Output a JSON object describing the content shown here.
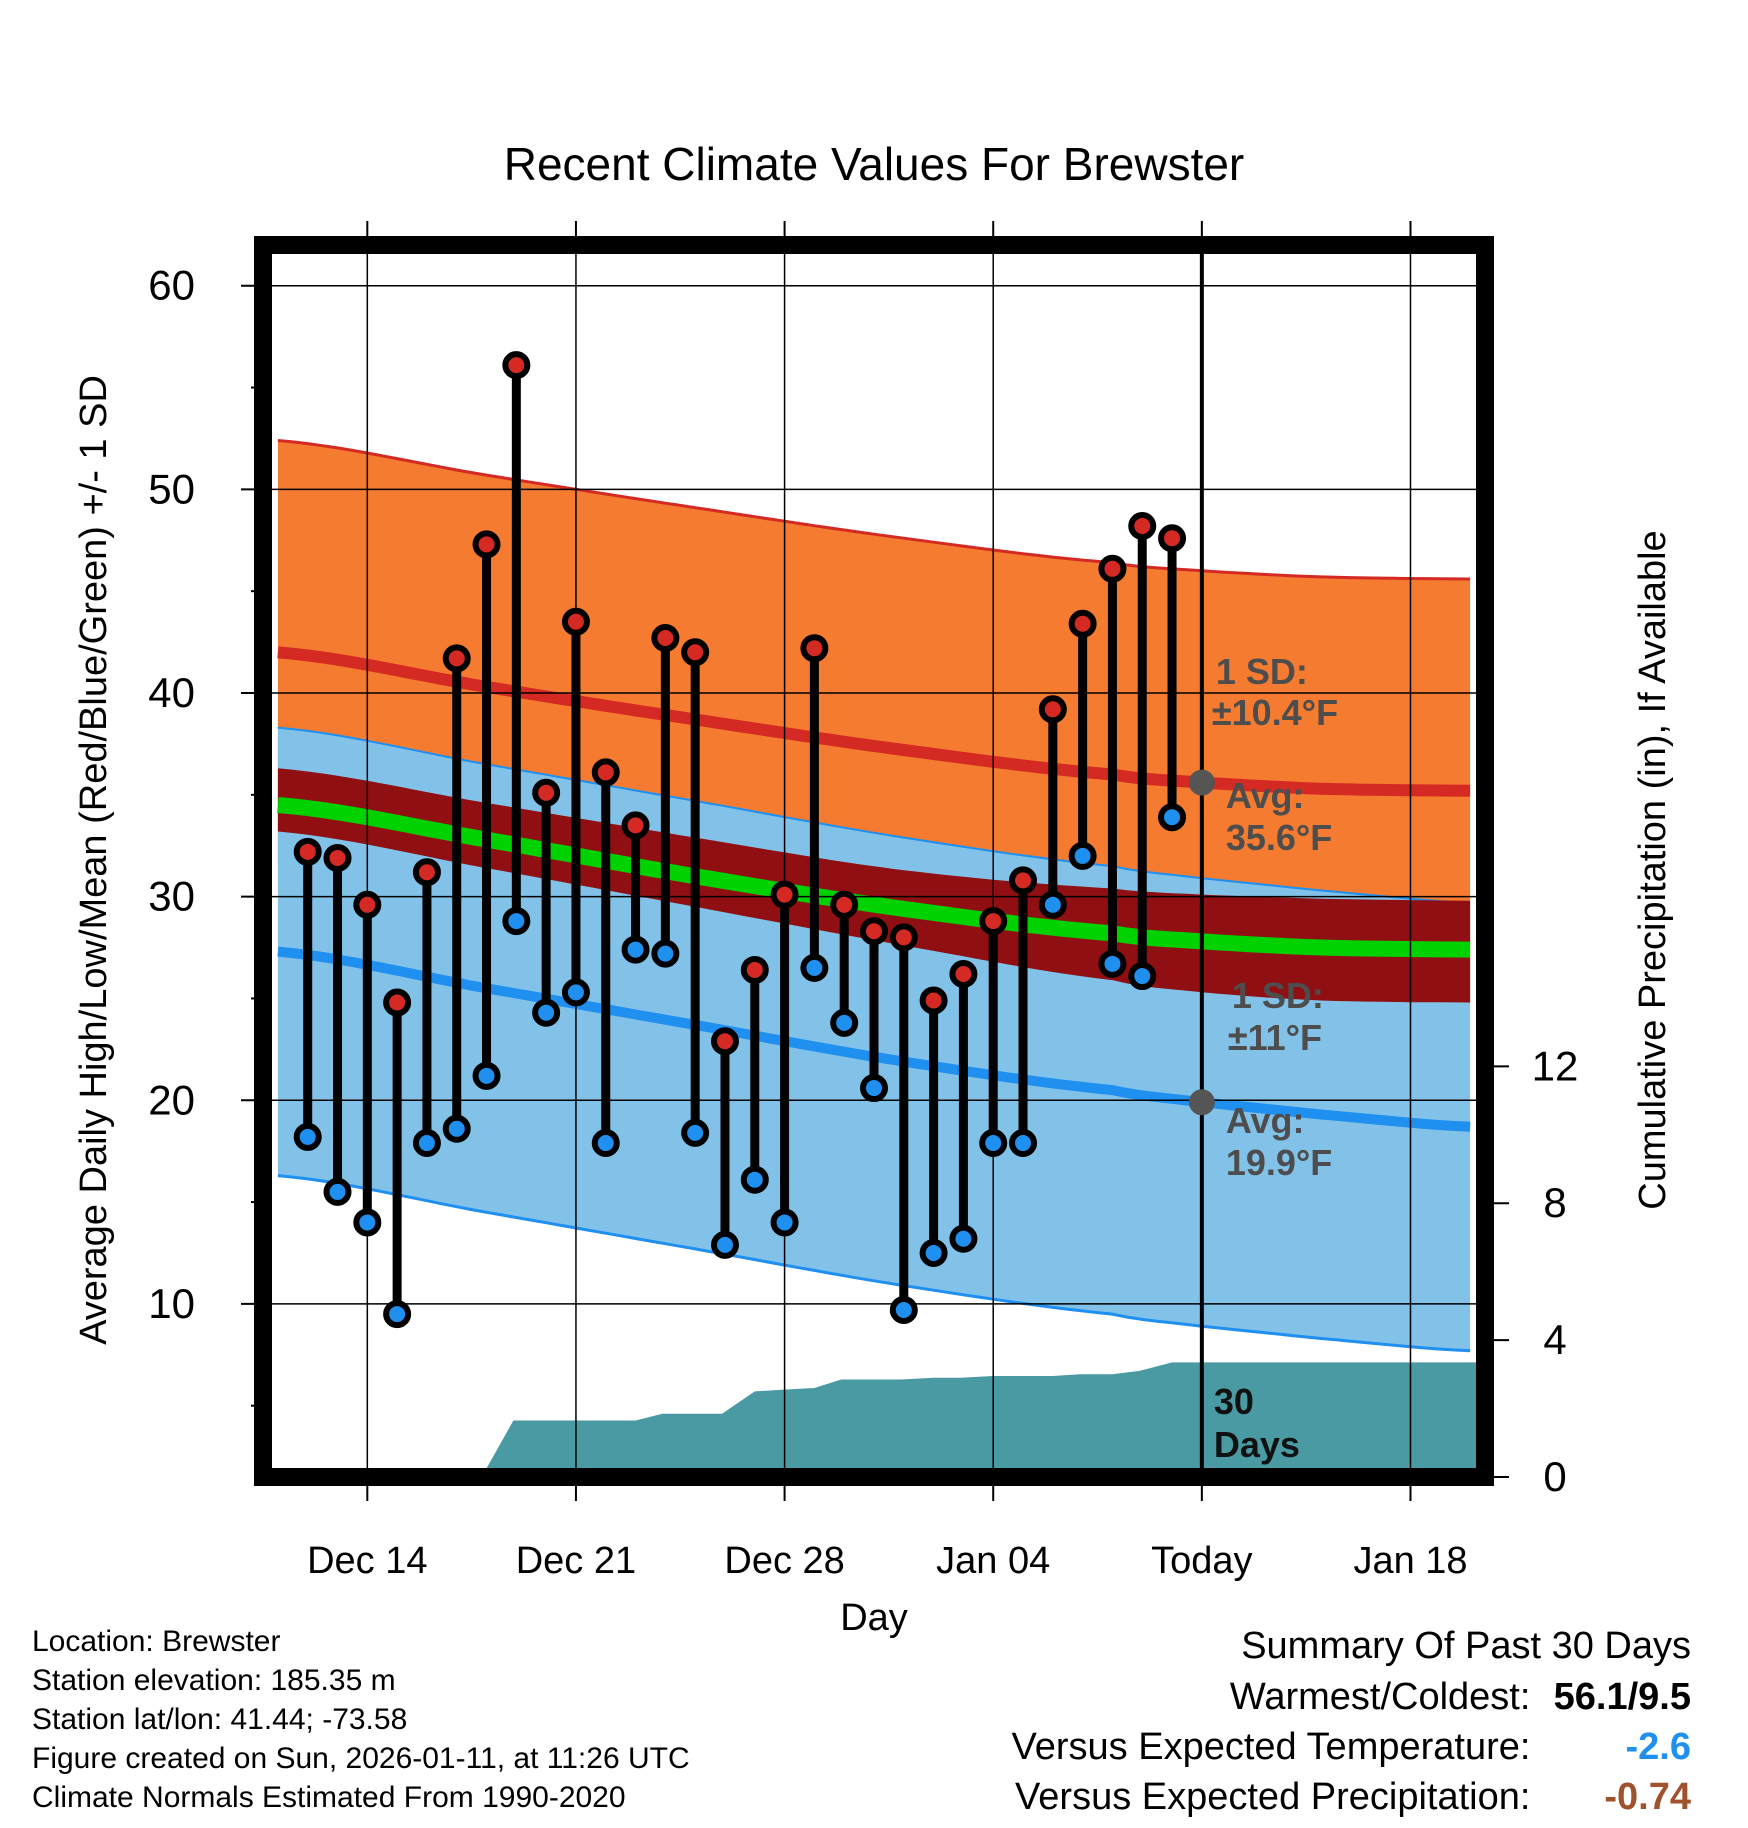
{
  "chart_data": {
    "type": "line",
    "title": "Recent Climate Values For Brewster",
    "xlabel": "Day",
    "ylabel": "Average Daily High/Low/Mean (Red/Blue/Green) +/- 1 SD",
    "ylabel_right": "Cumulative Precipitation (in), If Available",
    "ylim": [
      1.5,
      62
    ],
    "ylim_right": [
      0,
      36
    ],
    "x_range_days": [
      -31.5,
      9.5
    ],
    "x_ticks": [
      {
        "day": -28,
        "label": "Dec 14"
      },
      {
        "day": -21,
        "label": "Dec 21"
      },
      {
        "day": -14,
        "label": "Dec 28"
      },
      {
        "day": -7,
        "label": "Jan 04"
      },
      {
        "day": 0,
        "label": "Today"
      },
      {
        "day": 7,
        "label": "Jan 18"
      }
    ],
    "y_ticks": [
      10,
      20,
      30,
      40,
      50,
      60
    ],
    "y_ticks_right": [
      0,
      4,
      8,
      12
    ],
    "colors": {
      "high_band": "#f47b2f",
      "high_line": "#d42a23",
      "mean_band": "#8f0f12",
      "mean_line": "#00d100",
      "low_band": "#82c2e8",
      "low_line": "#1f8ff0",
      "precip": "#4a9aa3",
      "dot_high": "#d42a23",
      "dot_low": "#1f8ff0",
      "annot": "#4d4d4d"
    },
    "normals": {
      "days": [
        -31,
        -24,
        -17,
        -10,
        -3,
        0,
        4,
        9
      ],
      "high_avg": [
        42,
        40.3,
        38.7,
        37.2,
        36.0,
        35.6,
        35.3,
        35.2
      ],
      "high_sd": 10.4,
      "mean_avg": [
        34.5,
        32.8,
        31.0,
        29.4,
        28.2,
        27.8,
        27.5,
        27.4
      ],
      "mean_upper": [
        36.3,
        34.6,
        32.9,
        31.3,
        30.4,
        30.1,
        29.9,
        29.8
      ],
      "mean_lower": [
        33.2,
        31.4,
        29.5,
        27.6,
        25.9,
        25.3,
        24.9,
        24.8
      ],
      "low_avg": [
        27.3,
        25.5,
        23.7,
        21.9,
        20.5,
        19.9,
        19.3,
        18.7
      ],
      "low_sd": 11
    },
    "series": [
      {
        "name": "High",
        "color": "#d42a23",
        "values": [
          32.2,
          31.9,
          29.6,
          24.8,
          31.2,
          41.7,
          47.3,
          56.1,
          35.1,
          43.5,
          36.1,
          33.5,
          42.7,
          42.0,
          22.9,
          26.4,
          30.1,
          42.2,
          29.6,
          28.3,
          28.0,
          24.9,
          26.2,
          28.8,
          30.8,
          39.2,
          43.4,
          46.1,
          48.2,
          47.6
        ]
      },
      {
        "name": "Low",
        "color": "#1f8ff0",
        "values": [
          18.2,
          15.5,
          14.0,
          9.5,
          17.9,
          18.6,
          21.2,
          28.8,
          24.3,
          25.3,
          17.9,
          27.4,
          27.2,
          18.4,
          12.9,
          16.1,
          14.0,
          26.5,
          23.8,
          20.6,
          9.7,
          12.5,
          13.2,
          17.9,
          17.9,
          29.6,
          32.0,
          26.7,
          26.1,
          33.9
        ]
      }
    ],
    "obs_days": [
      -30,
      -29,
      -28,
      -27,
      -26,
      -25,
      -24,
      -23,
      -22,
      -21,
      -20,
      -19,
      -18,
      -17,
      -16,
      -15,
      -14,
      -13,
      -12,
      -11,
      -10,
      -9,
      -8,
      -7,
      -6,
      -5,
      -4,
      -3,
      -2,
      -1
    ],
    "precip": {
      "days": [
        -31.5,
        -28.2,
        -24,
        -23.1,
        -21,
        -20.1,
        -19,
        -18.1,
        -17,
        -16.1,
        -15,
        -14.1,
        -13,
        -12.1,
        -11,
        -10.1,
        -9,
        -8.1,
        -7,
        -6.1,
        -5,
        -4.1,
        -3,
        -2.1,
        -1,
        0,
        9.5
      ],
      "values": [
        0,
        0,
        0.25,
        1.65,
        1.65,
        1.65,
        1.65,
        1.85,
        1.85,
        1.85,
        2.5,
        2.55,
        2.6,
        2.85,
        2.85,
        2.85,
        2.9,
        2.9,
        2.95,
        2.95,
        2.95,
        3.0,
        3.0,
        3.1,
        3.35,
        3.35,
        3.35
      ]
    },
    "annotations": {
      "high_sd_label": "1 SD:",
      "high_sd_value": "±10.4°F",
      "high_avg_label": "Avg:",
      "high_avg_value": "35.6°F",
      "low_sd_label": "1 SD:",
      "low_sd_value": "±11°F",
      "low_avg_label": "Avg:",
      "low_avg_value": "19.9°F",
      "days_num": "30",
      "days_label": "Days"
    }
  },
  "info": {
    "location": "Location: Brewster",
    "elevation": "Station elevation: 185.35 m",
    "latlon": "Station lat/lon: 41.44; -73.58",
    "created": "Figure created on Sun, 2026-01-11, at 11:26 UTC",
    "normals": "Climate Normals Estimated From 1990-2020"
  },
  "summary": {
    "title": "Summary Of Past 30 Days",
    "warmest_label": "Warmest/Coldest:",
    "warmest_value": "56.1/9.5",
    "temp_label": "Versus Expected Temperature:",
    "temp_value": "-2.6",
    "temp_color": "#1f8ff0",
    "precip_label": "Versus Expected Precipitation:",
    "precip_value": "-0.74",
    "precip_color": "#a0522d"
  }
}
